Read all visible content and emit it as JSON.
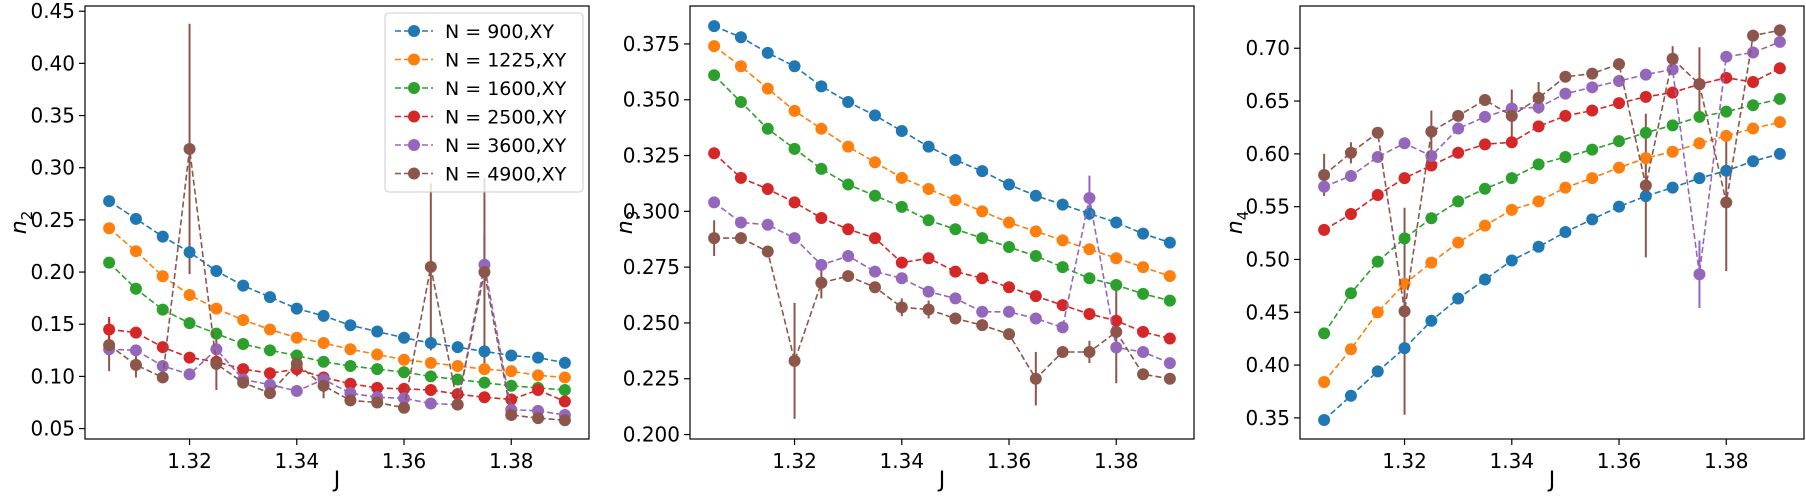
{
  "chart_data": [
    {
      "type": "line",
      "xlabel": "J",
      "ylabel": "n_2",
      "ylim": [
        0.04,
        0.455
      ],
      "xlim": [
        1.3005,
        1.3945
      ],
      "xticks": [
        1.32,
        1.34,
        1.36,
        1.38
      ],
      "yticks": [
        0.05,
        0.1,
        0.15,
        0.2,
        0.25,
        0.3,
        0.35,
        0.4,
        0.45
      ],
      "ytick_decimals": 2,
      "legend_position": "top-right",
      "x": [
        1.305,
        1.31,
        1.315,
        1.32,
        1.325,
        1.33,
        1.335,
        1.34,
        1.345,
        1.35,
        1.355,
        1.36,
        1.365,
        1.37,
        1.375,
        1.38,
        1.385,
        1.39
      ],
      "series": [
        {
          "name": "N = 900,XY",
          "color": "#1f77b4",
          "values": [
            0.268,
            0.251,
            0.234,
            0.219,
            0.201,
            0.187,
            0.176,
            0.165,
            0.158,
            0.149,
            0.143,
            0.137,
            0.132,
            0.128,
            0.124,
            0.12,
            0.118,
            0.113
          ]
        },
        {
          "name": "N = 1225,XY",
          "color": "#ff7f0e",
          "values": [
            0.242,
            0.22,
            0.196,
            0.178,
            0.165,
            0.154,
            0.145,
            0.137,
            0.132,
            0.126,
            0.121,
            0.116,
            0.113,
            0.11,
            0.107,
            0.105,
            0.101,
            0.099
          ]
        },
        {
          "name": "N = 1600,XY",
          "color": "#2ca02c",
          "values": [
            0.209,
            0.184,
            0.164,
            0.151,
            0.141,
            0.131,
            0.125,
            0.12,
            0.114,
            0.11,
            0.107,
            0.104,
            0.1,
            0.097,
            0.094,
            0.091,
            0.089,
            0.087
          ]
        },
        {
          "name": "N = 2500,XY",
          "color": "#d62728",
          "values": [
            0.145,
            0.142,
            0.128,
            0.118,
            0.114,
            0.107,
            0.103,
            0.107,
            0.099,
            0.093,
            0.089,
            0.088,
            0.087,
            0.083,
            0.08,
            0.078,
            0.087,
            0.076
          ]
        },
        {
          "name": "N = 3600,XY",
          "color": "#9467bd",
          "values": [
            0.126,
            0.125,
            0.11,
            0.102,
            0.126,
            0.097,
            0.092,
            0.086,
            0.097,
            0.084,
            0.08,
            0.079,
            0.074,
            0.073,
            0.207,
            0.068,
            0.067,
            0.063
          ]
        },
        {
          "name": "N = 4900,XY",
          "color": "#8c564b",
          "values": [
            0.13,
            0.111,
            0.099,
            0.318,
            0.112,
            0.094,
            0.084,
            0.112,
            0.091,
            0.077,
            0.075,
            0.07,
            0.205,
            0.073,
            0.2,
            0.063,
            0.06,
            0.058
          ]
        }
      ],
      "errorbars": [
        {
          "series": 5,
          "index": 0,
          "err": 0.025
        },
        {
          "series": 3,
          "index": 0,
          "err": 0.012
        },
        {
          "series": 5,
          "index": 1,
          "err": 0.012
        },
        {
          "series": 5,
          "index": 3,
          "err": 0.12
        },
        {
          "series": 5,
          "index": 4,
          "err": 0.025
        },
        {
          "series": 5,
          "index": 7,
          "err": 0.012
        },
        {
          "series": 5,
          "index": 8,
          "err": 0.012
        },
        {
          "series": 4,
          "index": 14,
          "err": 0.03
        },
        {
          "series": 5,
          "index": 12,
          "err": 0.08
        },
        {
          "series": 5,
          "index": 14,
          "err": 0.09
        }
      ]
    },
    {
      "type": "line",
      "xlabel": "J",
      "ylabel": "n_3",
      "ylim": [
        0.198,
        0.392
      ],
      "xlim": [
        1.3005,
        1.3945
      ],
      "xticks": [
        1.32,
        1.34,
        1.36,
        1.38
      ],
      "yticks": [
        0.2,
        0.225,
        0.25,
        0.275,
        0.3,
        0.325,
        0.35,
        0.375
      ],
      "ytick_decimals": 3,
      "legend_position": "none",
      "x": [
        1.305,
        1.31,
        1.315,
        1.32,
        1.325,
        1.33,
        1.335,
        1.34,
        1.345,
        1.35,
        1.355,
        1.36,
        1.365,
        1.37,
        1.375,
        1.38,
        1.385,
        1.39
      ],
      "series": [
        {
          "name": "N = 900,XY",
          "color": "#1f77b4",
          "values": [
            0.383,
            0.378,
            0.371,
            0.365,
            0.356,
            0.349,
            0.343,
            0.336,
            0.329,
            0.323,
            0.318,
            0.312,
            0.307,
            0.303,
            0.299,
            0.295,
            0.29,
            0.286
          ]
        },
        {
          "name": "N = 1225,XY",
          "color": "#ff7f0e",
          "values": [
            0.374,
            0.365,
            0.355,
            0.345,
            0.337,
            0.329,
            0.322,
            0.315,
            0.31,
            0.305,
            0.3,
            0.295,
            0.291,
            0.287,
            0.283,
            0.279,
            0.275,
            0.271
          ]
        },
        {
          "name": "N = 1600,XY",
          "color": "#2ca02c",
          "values": [
            0.361,
            0.349,
            0.337,
            0.328,
            0.319,
            0.312,
            0.307,
            0.302,
            0.296,
            0.292,
            0.288,
            0.284,
            0.28,
            0.275,
            0.27,
            0.267,
            0.263,
            0.26
          ]
        },
        {
          "name": "N = 2500,XY",
          "color": "#d62728",
          "values": [
            0.326,
            0.315,
            0.31,
            0.304,
            0.297,
            0.292,
            0.288,
            0.277,
            0.279,
            0.273,
            0.27,
            0.266,
            0.262,
            0.258,
            0.254,
            0.251,
            0.246,
            0.243
          ]
        },
        {
          "name": "N = 3600,XY",
          "color": "#9467bd",
          "values": [
            0.304,
            0.295,
            0.294,
            0.288,
            0.276,
            0.28,
            0.273,
            0.27,
            0.264,
            0.261,
            0.255,
            0.255,
            0.252,
            0.248,
            0.306,
            0.239,
            0.237,
            0.232
          ]
        },
        {
          "name": "N = 4900,XY",
          "color": "#8c564b",
          "values": [
            0.288,
            0.288,
            0.282,
            0.233,
            0.268,
            0.271,
            0.266,
            0.257,
            0.256,
            0.252,
            0.249,
            0.245,
            0.225,
            0.237,
            0.237,
            0.246,
            0.227,
            0.225
          ]
        }
      ],
      "errorbars": [
        {
          "series": 5,
          "index": 0,
          "err": 0.008
        },
        {
          "series": 5,
          "index": 3,
          "err": 0.026
        },
        {
          "series": 5,
          "index": 4,
          "err": 0.007
        },
        {
          "series": 5,
          "index": 7,
          "err": 0.004
        },
        {
          "series": 5,
          "index": 8,
          "err": 0.004
        },
        {
          "series": 5,
          "index": 12,
          "err": 0.012
        },
        {
          "series": 4,
          "index": 14,
          "err": 0.01
        },
        {
          "series": 5,
          "index": 14,
          "err": 0.005
        },
        {
          "series": 5,
          "index": 15,
          "err": 0.023
        }
      ]
    },
    {
      "type": "line",
      "xlabel": "J",
      "ylabel": "n_4",
      "ylim": [
        0.33,
        0.74
      ],
      "xlim": [
        1.3005,
        1.3945
      ],
      "xticks": [
        1.32,
        1.34,
        1.36,
        1.38
      ],
      "yticks": [
        0.35,
        0.4,
        0.45,
        0.5,
        0.55,
        0.6,
        0.65,
        0.7
      ],
      "ytick_decimals": 2,
      "legend_position": "none",
      "x": [
        1.305,
        1.31,
        1.315,
        1.32,
        1.325,
        1.33,
        1.335,
        1.34,
        1.345,
        1.35,
        1.355,
        1.36,
        1.365,
        1.37,
        1.375,
        1.38,
        1.385,
        1.39
      ],
      "series": [
        {
          "name": "N = 900,XY",
          "color": "#1f77b4",
          "values": [
            0.348,
            0.371,
            0.394,
            0.416,
            0.442,
            0.463,
            0.481,
            0.499,
            0.512,
            0.526,
            0.538,
            0.55,
            0.56,
            0.568,
            0.577,
            0.584,
            0.593,
            0.6
          ]
        },
        {
          "name": "N = 1225,XY",
          "color": "#ff7f0e",
          "values": [
            0.384,
            0.415,
            0.45,
            0.477,
            0.497,
            0.516,
            0.532,
            0.547,
            0.555,
            0.568,
            0.577,
            0.587,
            0.596,
            0.602,
            0.61,
            0.617,
            0.624,
            0.63
          ]
        },
        {
          "name": "N = 1600,XY",
          "color": "#2ca02c",
          "values": [
            0.43,
            0.468,
            0.498,
            0.52,
            0.539,
            0.555,
            0.567,
            0.577,
            0.59,
            0.597,
            0.604,
            0.612,
            0.62,
            0.627,
            0.635,
            0.64,
            0.646,
            0.652
          ]
        },
        {
          "name": "N = 2500,XY",
          "color": "#d62728",
          "values": [
            0.528,
            0.543,
            0.561,
            0.577,
            0.589,
            0.601,
            0.609,
            0.611,
            0.626,
            0.636,
            0.641,
            0.648,
            0.654,
            0.658,
            0.666,
            0.672,
            0.668,
            0.681
          ]
        },
        {
          "name": "N = 3600,XY",
          "color": "#9467bd",
          "values": [
            0.569,
            0.579,
            0.597,
            0.61,
            0.598,
            0.624,
            0.635,
            0.643,
            0.644,
            0.657,
            0.663,
            0.669,
            0.675,
            0.68,
            0.486,
            0.692,
            0.696,
            0.706
          ]
        },
        {
          "name": "N = 4900,XY",
          "color": "#8c564b",
          "values": [
            0.58,
            0.601,
            0.62,
            0.451,
            0.621,
            0.636,
            0.651,
            0.636,
            0.653,
            0.673,
            0.676,
            0.685,
            0.57,
            0.69,
            0.666,
            0.554,
            0.712,
            0.717
          ]
        }
      ],
      "errorbars": [
        {
          "series": 5,
          "index": 0,
          "err": 0.02
        },
        {
          "series": 5,
          "index": 1,
          "err": 0.01
        },
        {
          "series": 5,
          "index": 3,
          "err": 0.098
        },
        {
          "series": 5,
          "index": 4,
          "err": 0.02
        },
        {
          "series": 5,
          "index": 7,
          "err": 0.025
        },
        {
          "series": 5,
          "index": 8,
          "err": 0.015
        },
        {
          "series": 5,
          "index": 12,
          "err": 0.068
        },
        {
          "series": 5,
          "index": 13,
          "err": 0.012
        },
        {
          "series": 4,
          "index": 14,
          "err": 0.032
        },
        {
          "series": 5,
          "index": 14,
          "err": 0.035
        },
        {
          "series": 5,
          "index": 15,
          "err": 0.065
        }
      ]
    }
  ]
}
